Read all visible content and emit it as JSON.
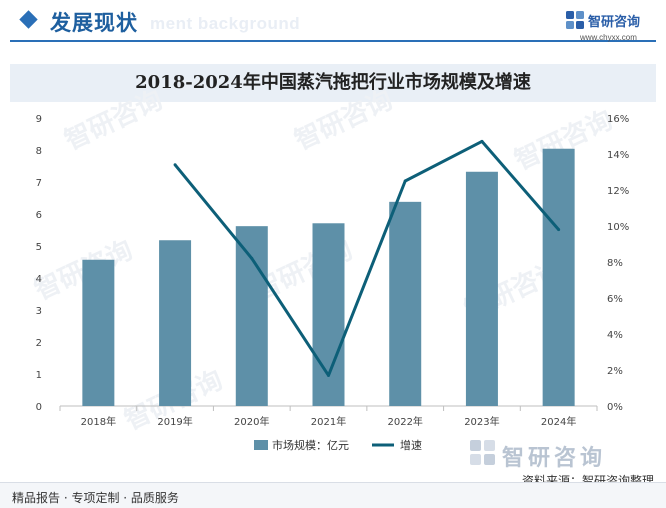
{
  "header": {
    "section_title": "发展现状",
    "background_word": "ment background",
    "logo_name": "智研咨询",
    "logo_url": "www.chyxx.com"
  },
  "chart_data": {
    "type": "bar",
    "title": "2018-2024年中国蒸汽拖把行业市场规模及增速",
    "categories": [
      "2018年",
      "2019年",
      "2020年",
      "2021年",
      "2022年",
      "2023年",
      "2024年"
    ],
    "series": [
      {
        "name": "市场规模：亿元",
        "type": "bar",
        "axis": "left",
        "values": [
          4.57,
          5.18,
          5.62,
          5.71,
          6.38,
          7.32,
          8.04
        ],
        "color": "#5e90a8"
      },
      {
        "name": "增速",
        "type": "line",
        "axis": "right",
        "values": [
          null,
          13.4,
          8.2,
          1.7,
          12.5,
          14.7,
          9.8
        ],
        "color": "#0d5f78"
      }
    ],
    "y_left": {
      "min": 0,
      "max": 9,
      "step": 1,
      "ticks": [
        "0",
        "1",
        "2",
        "3",
        "4",
        "5",
        "6",
        "7",
        "8",
        "9"
      ]
    },
    "y_right": {
      "min": 0,
      "max": 16,
      "step": 2,
      "ticks": [
        "0%",
        "2%",
        "4%",
        "6%",
        "8%",
        "10%",
        "12%",
        "14%",
        "16%"
      ]
    },
    "grid": false,
    "legend": "bottom-center"
  },
  "footer": {
    "left_text": "精品报告 · 专项定制 · 品质服务",
    "source_text": "资料来源：智研咨询整理",
    "bottom_logo": "智研咨询"
  }
}
